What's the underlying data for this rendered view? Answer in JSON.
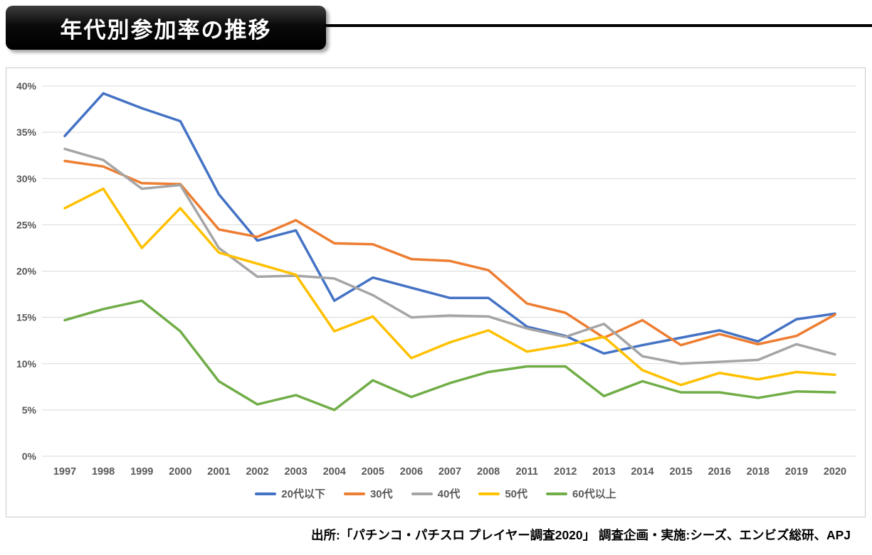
{
  "page": {
    "title": "年代別参加率の推移",
    "source_note": "出所:「パチンコ・パチスロ プレイヤー調査2020」 調査企画・実施:シーズ、エンビズ総研、APJ"
  },
  "chart_data": {
    "type": "line",
    "title": "年代別参加率の推移",
    "categories": [
      "1997",
      "1998",
      "1999",
      "2000",
      "2001",
      "2002",
      "2003",
      "2004",
      "2005",
      "2006",
      "2007",
      "2008",
      "2011",
      "2012",
      "2013",
      "2014",
      "2015",
      "2016",
      "2018",
      "2019",
      "2020"
    ],
    "series": [
      {
        "name": "20代以下",
        "color": "#4472C4",
        "values": [
          34.6,
          39.2,
          37.6,
          36.2,
          28.3,
          23.3,
          24.4,
          16.8,
          19.3,
          18.2,
          17.1,
          17.1,
          14.0,
          13.0,
          11.1,
          12.0,
          12.8,
          13.6,
          12.4,
          14.8,
          15.4
        ]
      },
      {
        "name": "30代",
        "color": "#ED7D31",
        "values": [
          31.9,
          31.3,
          29.5,
          29.4,
          24.5,
          23.7,
          25.5,
          23.0,
          22.9,
          21.3,
          21.1,
          20.1,
          16.5,
          15.5,
          12.8,
          14.7,
          12.0,
          13.2,
          12.1,
          13.0,
          15.3
        ]
      },
      {
        "name": "40代",
        "color": "#A5A5A5",
        "values": [
          33.2,
          32.0,
          28.9,
          29.3,
          22.5,
          19.4,
          19.5,
          19.2,
          17.4,
          15.0,
          15.2,
          15.1,
          13.8,
          12.9,
          14.3,
          10.8,
          10.0,
          10.2,
          10.4,
          12.1,
          11.0
        ]
      },
      {
        "name": "50代",
        "color": "#FFC000",
        "values": [
          26.8,
          28.9,
          22.5,
          26.8,
          22.0,
          20.8,
          19.6,
          13.5,
          15.1,
          10.6,
          12.3,
          13.6,
          11.3,
          12.0,
          12.9,
          9.3,
          7.7,
          9.0,
          8.3,
          9.1,
          8.8
        ]
      },
      {
        "name": "60代以上",
        "color": "#70AD47",
        "values": [
          14.7,
          15.9,
          16.8,
          13.5,
          8.1,
          5.6,
          6.6,
          5.0,
          8.2,
          6.4,
          7.9,
          9.1,
          9.7,
          9.7,
          6.5,
          8.1,
          6.9,
          6.9,
          6.3,
          7.0,
          6.9
        ]
      }
    ],
    "ylim": [
      0,
      40
    ],
    "ytick_step": 5,
    "ytick_format": "percent",
    "grid": "horizontal",
    "legend_position": "bottom",
    "colors": {
      "gridline": "#D9D9D9",
      "tick_text": "#595959"
    }
  }
}
